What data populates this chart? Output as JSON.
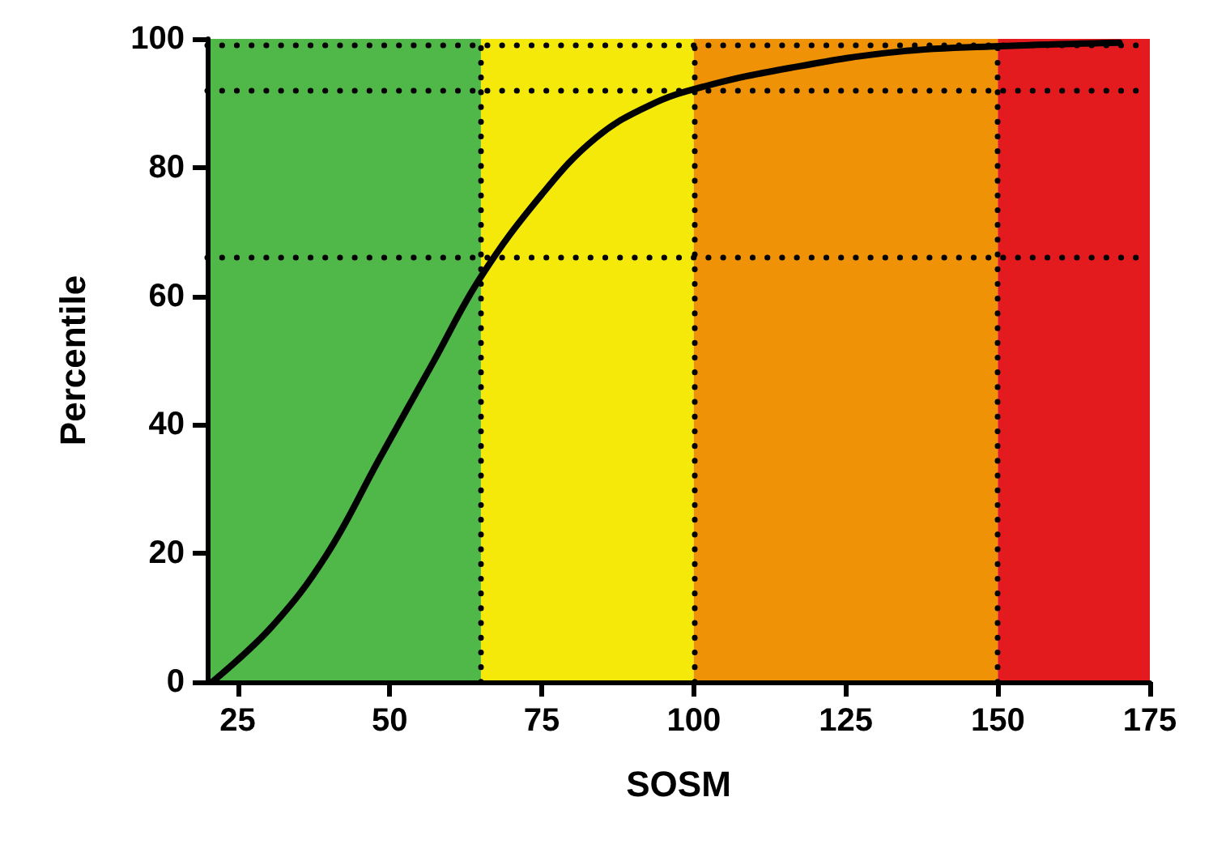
{
  "chart_data": {
    "type": "line",
    "xlabel": "SOSM",
    "ylabel": "Percentile",
    "series": [
      {
        "color": "#000000",
        "x": [
          20.8,
          30.6,
          39.5,
          48.3,
          57.2,
          65,
          75,
          83.9,
          92.8,
          101.7,
          115.9,
          133.6,
          151.5,
          170
        ],
        "values": [
          0,
          8.6,
          19.6,
          34.7,
          49.8,
          63,
          75.8,
          84.6,
          89.7,
          92.6,
          95.5,
          98,
          98.9,
          99.4
        ]
      }
    ],
    "xlim": [
      20,
      175
    ],
    "xticks": [
      25,
      50,
      75,
      100,
      125,
      150,
      175
    ],
    "ylim": [
      0,
      100
    ],
    "yticks": [
      0,
      20,
      40,
      60,
      80,
      100
    ],
    "bands": [
      {
        "axis": "x",
        "from": 20,
        "to": 65,
        "color": "#50b848"
      },
      {
        "axis": "x",
        "from": 65,
        "to": 100,
        "color": "#f5e90a"
      },
      {
        "axis": "x",
        "from": 100,
        "to": 150,
        "color": "#f09205"
      },
      {
        "axis": "x",
        "from": 150,
        "to": 175,
        "color": "#e31b1f"
      }
    ],
    "ref_lines": [
      {
        "axis": "x",
        "value": 65,
        "line_style": "dotted"
      },
      {
        "axis": "x",
        "value": 100,
        "line_style": "dotted"
      },
      {
        "axis": "x",
        "value": 150,
        "line_style": "dotted"
      },
      {
        "axis": "y",
        "value": 66,
        "line_style": "dotted"
      },
      {
        "axis": "y",
        "value": 92,
        "line_style": "dotted"
      },
      {
        "axis": "y",
        "value": 99,
        "line_style": "dotted"
      }
    ],
    "grid": false,
    "marker": "none",
    "line_style": "solid"
  }
}
